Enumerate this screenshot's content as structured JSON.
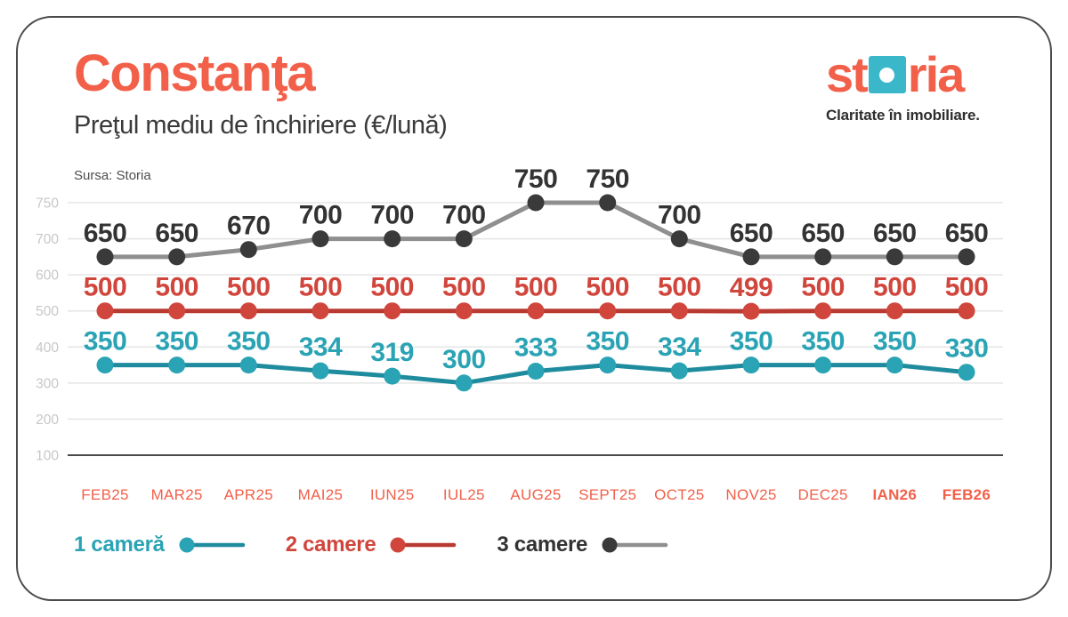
{
  "header": {
    "title": "Constanţa",
    "subtitle": "Preţul mediu de închiriere (€/lună)",
    "source": "Sursa: Storia",
    "logo": {
      "part1": "st",
      "part2": "ria",
      "tagline": "Claritate în imobiliare."
    }
  },
  "colors": {
    "coral": "#F2604A",
    "logo_square_teal": "#3BB7CA",
    "card_border": "#4A4A4A",
    "gridline": "#E5E5E5",
    "baseline_dark": "#4A4A4A",
    "y_tick_label": "#C7C7C7",
    "month_label": "#F2604A"
  },
  "chart_data": {
    "type": "line",
    "title": "Constanţa",
    "subtitle": "Preţul mediu de închiriere (€/lună)",
    "source": "Sursa: Storia",
    "categories": [
      "FEB25",
      "MAR25",
      "APR25",
      "MAI25",
      "IUN25",
      "IUL25",
      "AUG25",
      "SEPT25",
      "OCT25",
      "NOV25",
      "DEC25",
      "IAN26",
      "FEB26"
    ],
    "bold_categories": [
      "IAN26",
      "FEB26"
    ],
    "y_ticks": [
      750,
      700,
      600,
      500,
      400,
      300,
      200,
      100
    ],
    "grid": true,
    "legend_position": "bottom",
    "series": [
      {
        "name": "1 cameră",
        "values": [
          350,
          350,
          350,
          334,
          319,
          300,
          333,
          350,
          334,
          350,
          350,
          350,
          330
        ],
        "dot_color": "#2AA3B4",
        "line_color": "#1E8C9E",
        "label_color": "#2AA3B4"
      },
      {
        "name": "2 camere",
        "values": [
          500,
          500,
          500,
          500,
          500,
          500,
          500,
          500,
          500,
          499,
          500,
          500,
          500
        ],
        "dot_color": "#D0463C",
        "line_color": "#B83A31",
        "label_color": "#D0463C"
      },
      {
        "name": "3 camere",
        "values": [
          650,
          650,
          670,
          700,
          700,
          700,
          750,
          750,
          700,
          650,
          650,
          650,
          650
        ],
        "dot_color": "#3A3A3A",
        "line_color": "#8F8F8F",
        "label_color": "#333333"
      }
    ]
  }
}
